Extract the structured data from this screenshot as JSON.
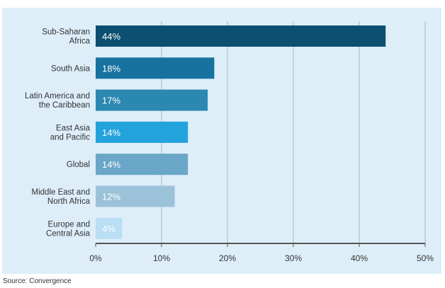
{
  "source": "Source: Convergence",
  "chart_data": {
    "type": "bar",
    "orientation": "horizontal",
    "categories": [
      [
        "Sub-Saharan",
        "Africa"
      ],
      [
        "South Asia"
      ],
      [
        "Latin America and",
        "the Caribbean"
      ],
      [
        "East Asia",
        "and Pacific"
      ],
      [
        "Global"
      ],
      [
        "Middle East and",
        "North Africa"
      ],
      [
        "Europe and",
        "Central Asia"
      ]
    ],
    "values": [
      44,
      18,
      17,
      14,
      14,
      12,
      4
    ],
    "data_labels": [
      "44%",
      "18%",
      "17%",
      "14%",
      "14%",
      "12%",
      "4%"
    ],
    "bar_colors": [
      "#0d4f70",
      "#17729f",
      "#2b88b1",
      "#22a3dc",
      "#69a6c7",
      "#9cc2da",
      "#badef3"
    ],
    "xlim": [
      0,
      50
    ],
    "x_ticks": [
      0,
      10,
      20,
      30,
      40,
      50
    ],
    "x_tick_labels": [
      "0%",
      "10%",
      "20%",
      "30%",
      "40%",
      "50%"
    ],
    "grid": "vertical",
    "title": "",
    "xlabel": "",
    "ylabel": ""
  }
}
